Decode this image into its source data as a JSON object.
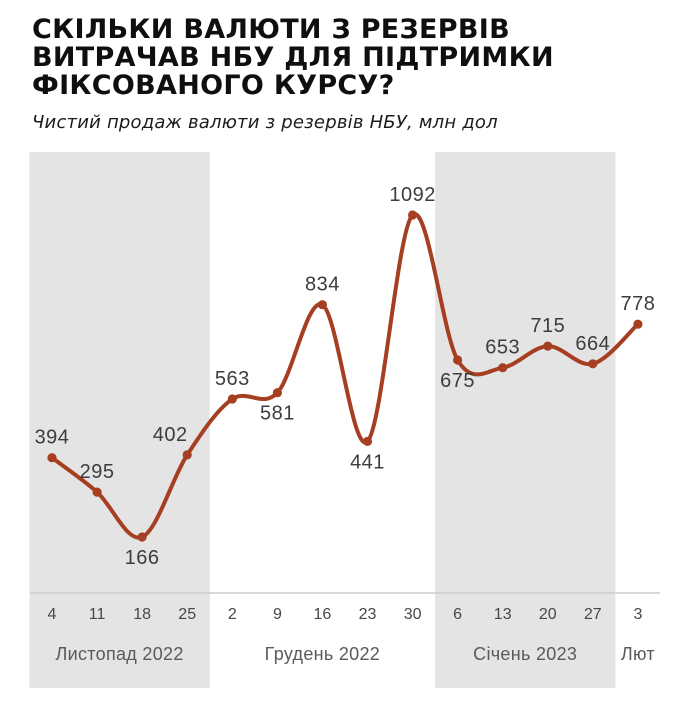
{
  "header": {
    "title_lines": [
      "СКІЛЬКИ ВАЛЮТИ З РЕЗЕРВІВ",
      "ВИТРАЧАВ НБУ ДЛЯ ПІДТРИМКИ",
      "ФІКСОВАНОГО КУРСУ?"
    ],
    "subtitle": "Чистий продаж валюти з резервів НБУ, млн дол"
  },
  "chart_data": {
    "type": "line",
    "title": "Чистий продаж валюти з резервів НБУ, млн дол",
    "ylabel": "млн дол",
    "grid": false,
    "legend": false,
    "x_days": [
      "4",
      "11",
      "18",
      "25",
      "2",
      "9",
      "16",
      "23",
      "30",
      "6",
      "13",
      "20",
      "27",
      "3"
    ],
    "values": [
      394,
      295,
      166,
      402,
      563,
      581,
      834,
      441,
      1092,
      675,
      653,
      715,
      664,
      778
    ],
    "groups": [
      {
        "month": "Листопад 2022",
        "shaded": true,
        "points": [
          {
            "day": "4",
            "value": 394,
            "label_pos": "above"
          },
          {
            "day": "11",
            "value": 295,
            "label_pos": "above"
          },
          {
            "day": "18",
            "value": 166,
            "label_pos": "below"
          },
          {
            "day": "25",
            "value": 402,
            "label_pos": "above",
            "label_dx": -17
          }
        ]
      },
      {
        "month": "Грудень 2022",
        "shaded": false,
        "points": [
          {
            "day": "2",
            "value": 563,
            "label_pos": "above"
          },
          {
            "day": "9",
            "value": 581,
            "label_pos": "below"
          },
          {
            "day": "16",
            "value": 834,
            "label_pos": "above"
          },
          {
            "day": "23",
            "value": 441,
            "label_pos": "below"
          },
          {
            "day": "30",
            "value": 1092,
            "label_pos": "above"
          }
        ]
      },
      {
        "month": "Січень 2023",
        "shaded": true,
        "points": [
          {
            "day": "6",
            "value": 675,
            "label_pos": "below"
          },
          {
            "day": "13",
            "value": 653,
            "label_pos": "above"
          },
          {
            "day": "20",
            "value": 715,
            "label_pos": "above"
          },
          {
            "day": "27",
            "value": 664,
            "label_pos": "above"
          }
        ]
      },
      {
        "month": "Лют",
        "shaded": false,
        "points": [
          {
            "day": "3",
            "value": 778,
            "label_pos": "above"
          }
        ]
      }
    ],
    "colors": {
      "line": "#a63e22",
      "marker": "#a63e22",
      "band": "#e4e4e4",
      "axis": "#cccccc",
      "value_label": "#3d3d3d",
      "tick_label": "#474747",
      "month_label": "#5a5a5a"
    }
  }
}
